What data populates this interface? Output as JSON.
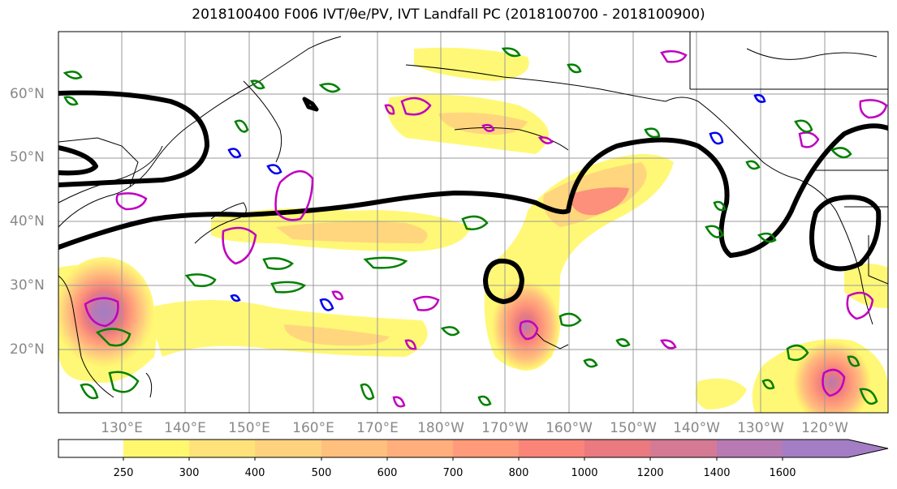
{
  "title": "2018100400 F006 IVT/θe/PV, IVT Landfall PC (2018100700 - 2018100900)",
  "axes": {
    "lat_labels": [
      "60°N",
      "50°N",
      "40°N",
      "30°N",
      "20°N"
    ],
    "lon_labels": [
      "130°E",
      "140°E",
      "150°E",
      "160°E",
      "170°E",
      "180°W",
      "170°W",
      "160°W",
      "150°W",
      "140°W",
      "130°W",
      "120°W"
    ]
  },
  "colorbar": {
    "labels": [
      "250",
      "300",
      "400",
      "500",
      "600",
      "700",
      "800",
      "1000",
      "1200",
      "1400",
      "1600"
    ],
    "colors": [
      "#ffffff",
      "#fff86f",
      "#ffe37a",
      "#ffd27e",
      "#ffc07e",
      "#ffae7c",
      "#ff9a7a",
      "#fb8479",
      "#ea7a80",
      "#d57a94",
      "#b87ab3",
      "#a37ec5"
    ],
    "extend": "max"
  },
  "legend_colors": {
    "pv_contour": "#c000c0",
    "theta_contour_green": "#008000",
    "theta_contour_blue": "#0000ee",
    "pc_contour": "#000000",
    "coast": "#000000",
    "grid": "#9a9a9a"
  }
}
